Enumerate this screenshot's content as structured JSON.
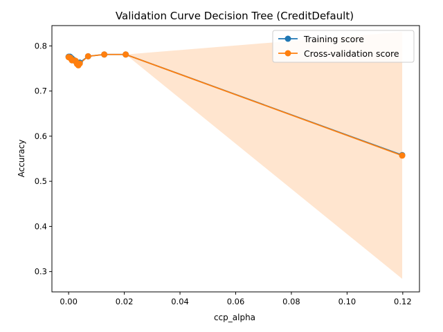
{
  "chart_data": {
    "type": "line",
    "title": "Validation Curve Decision Tree (CreditDefault)",
    "xlabel": "ccp_alpha",
    "ylabel": "Accuracy",
    "xlim": [
      -0.006,
      0.126
    ],
    "ylim": [
      0.255,
      0.845
    ],
    "xticks": [
      0.0,
      0.02,
      0.04,
      0.06,
      0.08,
      0.1,
      0.12
    ],
    "xtick_labels": [
      "0.00",
      "0.02",
      "0.04",
      "0.06",
      "0.08",
      "0.10",
      "0.12"
    ],
    "yticks": [
      0.3,
      0.4,
      0.5,
      0.6,
      0.7,
      0.8
    ],
    "ytick_labels": [
      "0.3",
      "0.4",
      "0.5",
      "0.6",
      "0.7",
      "0.8"
    ],
    "grid": false,
    "legend_position": "top-right",
    "x": [
      0.0,
      0.0005,
      0.0008,
      0.0012,
      0.0018,
      0.0025,
      0.003,
      0.0035,
      0.004,
      0.007,
      0.0128,
      0.0205,
      0.1198
    ],
    "series": [
      {
        "name": "Training score",
        "color": "#1f77b4",
        "marker": "circle",
        "values": [
          0.776,
          0.776,
          0.774,
          0.772,
          0.769,
          0.766,
          0.762,
          0.759,
          0.763,
          0.777,
          0.781,
          0.781,
          0.558
        ],
        "band_low": [
          0.776,
          0.776,
          0.774,
          0.772,
          0.769,
          0.766,
          0.762,
          0.759,
          0.763,
          0.777,
          0.781,
          0.781,
          0.557
        ],
        "band_high": [
          0.776,
          0.776,
          0.774,
          0.772,
          0.769,
          0.766,
          0.762,
          0.759,
          0.763,
          0.777,
          0.781,
          0.781,
          0.559
        ]
      },
      {
        "name": "Cross-validation score",
        "color": "#ff7f0e",
        "marker": "circle",
        "values": [
          0.775,
          0.774,
          0.772,
          0.768,
          0.768,
          0.767,
          0.76,
          0.757,
          0.761,
          0.777,
          0.781,
          0.781,
          0.557
        ],
        "band_low": [
          0.775,
          0.774,
          0.772,
          0.768,
          0.768,
          0.767,
          0.76,
          0.757,
          0.761,
          0.777,
          0.781,
          0.781,
          0.284
        ],
        "band_high": [
          0.775,
          0.774,
          0.772,
          0.768,
          0.768,
          0.767,
          0.76,
          0.757,
          0.761,
          0.777,
          0.781,
          0.781,
          0.831
        ]
      }
    ]
  }
}
